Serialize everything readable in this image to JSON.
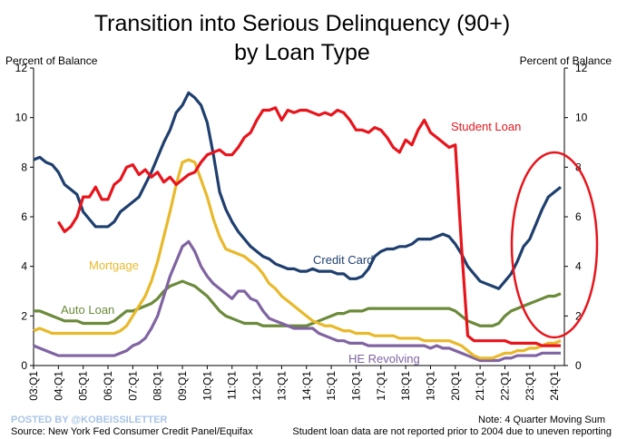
{
  "chart_data": {
    "type": "line",
    "title": [
      "Transition into Serious Delinquency (90+)",
      "by Loan Type"
    ],
    "y_label": "Percent of Balance",
    "y2_label": "Percent of Balance",
    "categories": [
      "03:Q1",
      null,
      null,
      null,
      "04:Q1",
      null,
      null,
      null,
      "05:Q1",
      null,
      null,
      null,
      "06:Q1",
      null,
      null,
      null,
      "07:Q1",
      null,
      null,
      null,
      "08:Q1",
      null,
      null,
      null,
      "09:Q1",
      null,
      null,
      null,
      "10:Q1",
      null,
      null,
      null,
      "11:Q1",
      null,
      null,
      null,
      "12:Q1",
      null,
      null,
      null,
      "13:Q1",
      null,
      null,
      null,
      "14:Q1",
      null,
      null,
      null,
      "15:Q1",
      null,
      null,
      null,
      "16:Q1",
      null,
      null,
      null,
      "17:Q1",
      null,
      null,
      null,
      "18:Q1",
      null,
      null,
      null,
      "19:Q1",
      null,
      null,
      null,
      "20:Q1",
      null,
      null,
      null,
      "21:Q1",
      null,
      null,
      null,
      "22:Q1",
      null,
      null,
      null,
      "23:Q1",
      null,
      null,
      null,
      "24:Q1",
      null
    ],
    "series": [
      {
        "name": "Credit Card",
        "color": "#1f3f6e",
        "values": [
          8.3,
          8.4,
          8.2,
          8.1,
          7.8,
          7.3,
          7.1,
          6.9,
          6.2,
          5.9,
          5.6,
          5.6,
          5.6,
          5.8,
          6.2,
          6.4,
          6.6,
          6.8,
          7.3,
          7.8,
          8.4,
          9.0,
          9.5,
          10.2,
          10.5,
          11.0,
          10.8,
          10.5,
          9.8,
          8.5,
          7.0,
          6.3,
          5.8,
          5.4,
          5.1,
          4.8,
          4.6,
          4.4,
          4.3,
          4.1,
          4.0,
          3.9,
          3.9,
          3.8,
          3.8,
          3.9,
          3.8,
          3.8,
          3.8,
          3.7,
          3.7,
          3.5,
          3.5,
          3.6,
          3.9,
          4.4,
          4.6,
          4.7,
          4.7,
          4.8,
          4.8,
          4.9,
          5.1,
          5.1,
          5.1,
          5.2,
          5.3,
          5.2,
          4.9,
          4.5,
          4.0,
          3.7,
          3.4,
          3.3,
          3.2,
          3.1,
          3.4,
          3.7,
          4.2,
          4.8,
          5.1,
          5.7,
          6.3,
          6.8,
          7.0,
          7.2
        ]
      },
      {
        "name": "Student Loan",
        "color": "#e8141c",
        "values": [
          null,
          null,
          null,
          null,
          5.8,
          5.4,
          5.6,
          6.0,
          6.8,
          6.8,
          7.2,
          6.7,
          6.7,
          7.3,
          7.5,
          8.0,
          8.1,
          7.7,
          7.9,
          7.6,
          7.8,
          7.4,
          7.6,
          7.3,
          7.5,
          7.7,
          7.8,
          8.2,
          8.5,
          8.6,
          8.7,
          8.5,
          8.5,
          8.8,
          9.2,
          9.4,
          9.9,
          10.3,
          10.3,
          10.4,
          9.9,
          10.3,
          10.2,
          10.3,
          10.3,
          10.2,
          10.1,
          10.2,
          10.1,
          10.3,
          10.2,
          9.9,
          9.5,
          9.5,
          9.4,
          9.6,
          9.5,
          9.2,
          8.8,
          8.6,
          9.1,
          8.9,
          9.5,
          9.9,
          9.4,
          9.2,
          9.0,
          8.8,
          8.9,
          4.8,
          1.2,
          1.0,
          1.0,
          1.0,
          1.0,
          1.0,
          1.0,
          0.9,
          0.9,
          0.9,
          0.9,
          0.9,
          0.8,
          0.8,
          0.8,
          0.8
        ]
      },
      {
        "name": "Mortgage",
        "color": "#e8b92a",
        "values": [
          1.4,
          1.5,
          1.4,
          1.3,
          1.3,
          1.3,
          1.3,
          1.3,
          1.3,
          1.3,
          1.3,
          1.3,
          1.3,
          1.3,
          1.4,
          1.6,
          2.0,
          2.4,
          2.8,
          3.4,
          4.2,
          5.2,
          6.2,
          7.3,
          8.2,
          8.3,
          8.2,
          7.5,
          6.8,
          5.9,
          5.2,
          4.7,
          4.6,
          4.5,
          4.4,
          4.2,
          4.0,
          3.7,
          3.3,
          3.1,
          2.8,
          2.6,
          2.4,
          2.2,
          2.0,
          1.8,
          1.7,
          1.6,
          1.6,
          1.5,
          1.4,
          1.4,
          1.3,
          1.3,
          1.3,
          1.2,
          1.2,
          1.2,
          1.2,
          1.1,
          1.1,
          1.1,
          1.1,
          1.0,
          1.0,
          1.0,
          1.0,
          1.0,
          0.9,
          0.8,
          0.6,
          0.4,
          0.3,
          0.3,
          0.3,
          0.4,
          0.5,
          0.5,
          0.6,
          0.6,
          0.7,
          0.7,
          0.8,
          0.9,
          0.9,
          1.0
        ]
      },
      {
        "name": "Auto Loan",
        "color": "#6b8a3a",
        "values": [
          2.2,
          2.2,
          2.1,
          2.0,
          1.9,
          1.8,
          1.8,
          1.8,
          1.7,
          1.7,
          1.7,
          1.7,
          1.7,
          1.8,
          2.0,
          2.2,
          2.2,
          2.3,
          2.4,
          2.5,
          2.7,
          3.0,
          3.2,
          3.3,
          3.4,
          3.3,
          3.2,
          3.0,
          2.8,
          2.5,
          2.2,
          2.0,
          1.9,
          1.8,
          1.7,
          1.7,
          1.7,
          1.6,
          1.6,
          1.6,
          1.6,
          1.6,
          1.6,
          1.6,
          1.6,
          1.7,
          1.8,
          1.9,
          2.0,
          2.1,
          2.1,
          2.2,
          2.2,
          2.2,
          2.3,
          2.3,
          2.3,
          2.3,
          2.3,
          2.3,
          2.3,
          2.3,
          2.3,
          2.3,
          2.3,
          2.3,
          2.3,
          2.3,
          2.2,
          2.0,
          1.8,
          1.7,
          1.6,
          1.6,
          1.6,
          1.7,
          2.0,
          2.2,
          2.3,
          2.4,
          2.5,
          2.6,
          2.7,
          2.8,
          2.8,
          2.9
        ]
      },
      {
        "name": "HE Revolving",
        "color": "#8064a2",
        "values": [
          0.8,
          0.7,
          0.6,
          0.5,
          0.4,
          0.4,
          0.4,
          0.4,
          0.4,
          0.4,
          0.4,
          0.4,
          0.4,
          0.4,
          0.5,
          0.6,
          0.8,
          0.9,
          1.1,
          1.5,
          2.0,
          2.8,
          3.6,
          4.2,
          4.8,
          5.0,
          4.6,
          4.0,
          3.6,
          3.3,
          3.1,
          2.9,
          2.7,
          3.0,
          3.0,
          2.7,
          2.6,
          2.2,
          1.9,
          1.8,
          1.7,
          1.6,
          1.5,
          1.5,
          1.5,
          1.5,
          1.3,
          1.2,
          1.1,
          1.0,
          1.0,
          0.9,
          0.9,
          0.9,
          0.8,
          0.8,
          0.8,
          0.8,
          0.8,
          0.8,
          0.8,
          0.8,
          0.8,
          0.8,
          0.7,
          0.8,
          0.7,
          0.7,
          0.6,
          0.5,
          0.4,
          0.3,
          0.2,
          0.2,
          0.2,
          0.2,
          0.3,
          0.3,
          0.4,
          0.4,
          0.4,
          0.4,
          0.5,
          0.5,
          0.5,
          0.5
        ]
      }
    ],
    "ylim": [
      0,
      12
    ],
    "yticks": [
      0,
      2,
      4,
      6,
      8,
      10,
      12
    ],
    "y2lim": [
      0,
      12
    ],
    "y2ticks": [
      0,
      2,
      4,
      6,
      8,
      10,
      12
    ],
    "grid": false,
    "watermark": "POSTED BY @KOBEISSILETTER",
    "source": "Source: New York Fed Consumer Credit Panel/Equifax",
    "notes": [
      "Note: 4 Quarter Moving Sum",
      "Student loan data are not reported prior to 2004 due to uneven reporting"
    ]
  }
}
